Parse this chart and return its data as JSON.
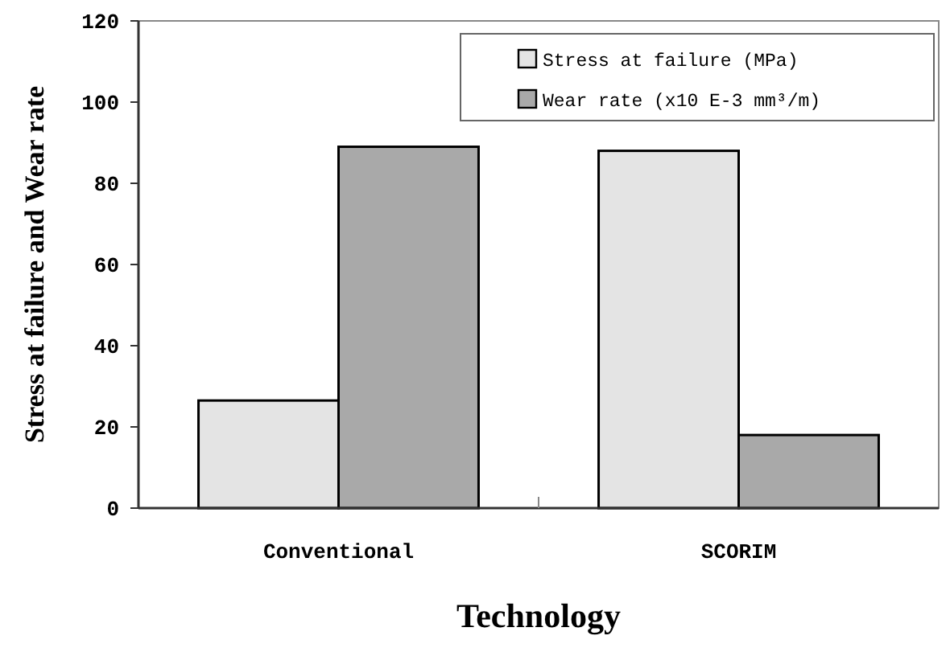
{
  "chart_data": {
    "type": "bar",
    "xlabel": "Technology",
    "ylabel": "Stress at failure and Wear rate",
    "categories": [
      "Conventional",
      "SCORIM"
    ],
    "series": [
      {
        "name": "Stress at failure (MPa)",
        "color": "#e4e4e4",
        "values": [
          26.5,
          88
        ]
      },
      {
        "name": "Wear rate (x10 E-3 mm³/m)",
        "color": "#a9a9a9",
        "values": [
          89,
          18
        ]
      }
    ],
    "ylim": [
      0,
      120
    ],
    "yticks": [
      0,
      20,
      40,
      60,
      80,
      100,
      120
    ],
    "grid": false,
    "legend": "top right"
  }
}
